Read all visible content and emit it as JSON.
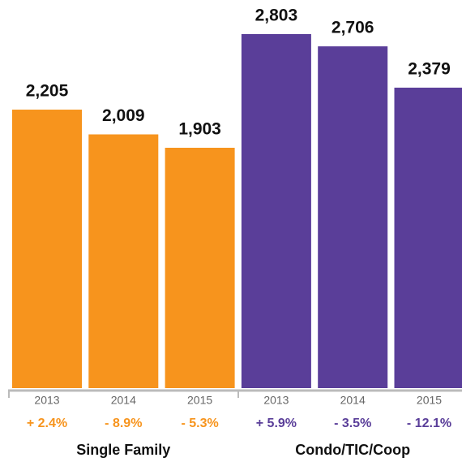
{
  "chart_data": {
    "type": "bar",
    "categories": [
      "2013",
      "2014",
      "2015"
    ],
    "series": [
      {
        "name": "Single Family",
        "color": "#f7941d",
        "values": [
          2205,
          2009,
          1903
        ],
        "value_labels": [
          "2,205",
          "2,009",
          "1,903"
        ],
        "changes": [
          "+ 2.4%",
          "- 8.9%",
          "- 5.3%"
        ]
      },
      {
        "name": "Condo/TIC/Coop",
        "color": "#5a3e99",
        "values": [
          2803,
          2706,
          2379
        ],
        "value_labels": [
          "2,803",
          "2,706",
          "2,379"
        ],
        "changes": [
          "+ 5.9%",
          "- 3.5%",
          "- 12.1%"
        ]
      }
    ]
  }
}
